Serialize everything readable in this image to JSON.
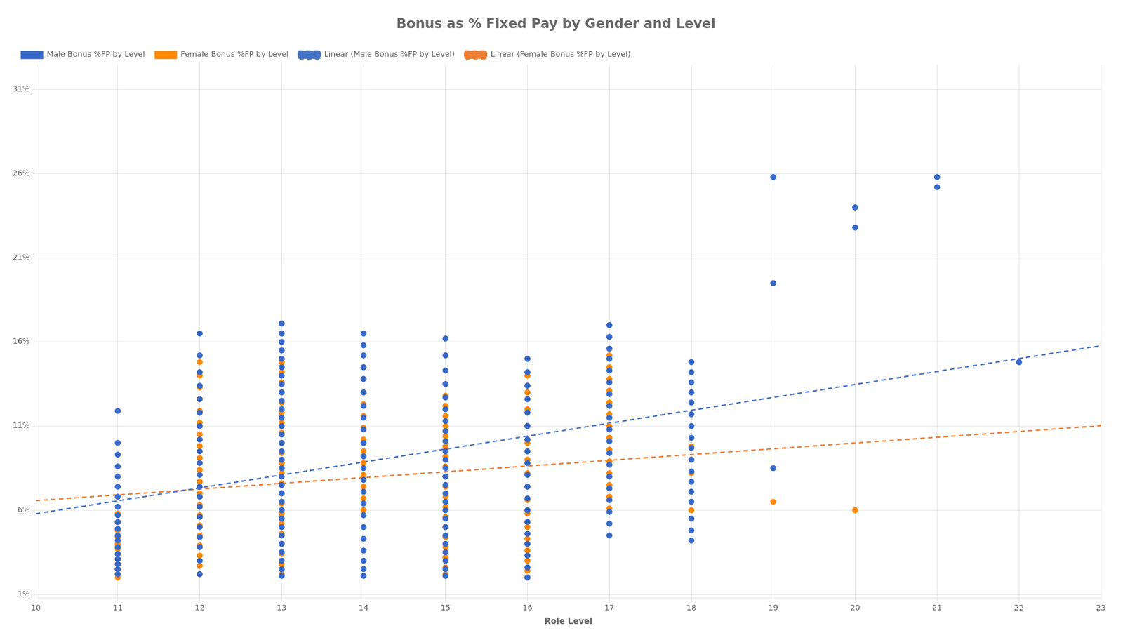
{
  "chart_data": {
    "type": "scatter",
    "title": "Bonus as % Fixed Pay by Gender and Level",
    "xlabel": "Role Level",
    "xlim": [
      10,
      23
    ],
    "ylim": [
      0.008,
      0.325
    ],
    "xticks": [
      10,
      11,
      12,
      13,
      14,
      15,
      16,
      17,
      18,
      19,
      20,
      21,
      22,
      23
    ],
    "yticks": [
      {
        "value": 0.01,
        "label": "1%"
      },
      {
        "value": 0.06,
        "label": "6%"
      },
      {
        "value": 0.11,
        "label": "11%"
      },
      {
        "value": 0.16,
        "label": "16%"
      },
      {
        "value": 0.21,
        "label": "21%"
      },
      {
        "value": 0.26,
        "label": "26%"
      },
      {
        "value": 0.31,
        "label": "31%"
      }
    ],
    "grid": true,
    "legend": "upper left",
    "series": [
      {
        "name": "Male Bonus %FP by Level",
        "type": "scatter",
        "marker": "circle",
        "color": "#3568c8",
        "x": [
          11,
          11,
          11,
          11,
          11,
          11,
          11,
          11,
          11,
          11,
          11,
          11,
          11,
          11,
          11,
          11,
          11,
          11,
          11,
          12,
          12,
          12,
          12,
          12,
          12,
          12,
          12,
          12,
          12,
          12,
          12,
          12,
          12,
          12,
          12,
          12,
          12,
          12,
          12,
          13,
          13,
          13,
          13,
          13,
          13,
          13,
          13,
          13,
          13,
          13,
          13,
          13,
          13,
          13,
          13,
          13,
          13,
          13,
          13,
          13,
          13,
          13,
          13,
          13,
          13,
          13,
          13,
          13,
          13,
          13,
          14,
          14,
          14,
          14,
          14,
          14,
          14,
          14,
          14,
          14,
          14,
          14,
          14,
          14,
          14,
          14,
          14,
          14,
          14,
          14,
          14,
          14,
          15,
          15,
          15,
          15,
          15,
          15,
          15,
          15,
          15,
          15,
          15,
          15,
          15,
          15,
          15,
          15,
          15,
          15,
          15,
          15,
          15,
          15,
          15,
          15,
          15,
          16,
          16,
          16,
          16,
          16,
          16,
          16,
          16,
          16,
          16,
          16,
          16,
          16,
          16,
          16,
          16,
          16,
          16,
          16,
          17,
          17,
          17,
          17,
          17,
          17,
          17,
          17,
          17,
          17,
          17,
          17,
          17,
          17,
          17,
          17,
          17,
          17,
          17,
          18,
          18,
          18,
          18,
          18,
          18,
          18,
          18,
          18,
          18,
          18,
          18,
          18,
          18,
          18,
          18,
          18,
          19,
          19,
          19,
          20,
          20,
          21,
          21,
          22
        ],
        "values": [
          0.119,
          0.1,
          0.093,
          0.086,
          0.08,
          0.074,
          0.068,
          0.062,
          0.057,
          0.053,
          0.049,
          0.045,
          0.042,
          0.038,
          0.034,
          0.031,
          0.028,
          0.025,
          0.022,
          0.165,
          0.152,
          0.142,
          0.134,
          0.126,
          0.118,
          0.11,
          0.102,
          0.095,
          0.088,
          0.081,
          0.074,
          0.068,
          0.062,
          0.056,
          0.05,
          0.044,
          0.038,
          0.03,
          0.022,
          0.171,
          0.165,
          0.16,
          0.155,
          0.15,
          0.145,
          0.14,
          0.135,
          0.13,
          0.125,
          0.12,
          0.115,
          0.11,
          0.105,
          0.1,
          0.095,
          0.09,
          0.085,
          0.08,
          0.075,
          0.07,
          0.065,
          0.06,
          0.055,
          0.05,
          0.045,
          0.04,
          0.035,
          0.03,
          0.025,
          0.021,
          0.165,
          0.158,
          0.152,
          0.145,
          0.138,
          0.13,
          0.122,
          0.115,
          0.108,
          0.1,
          0.092,
          0.085,
          0.078,
          0.071,
          0.064,
          0.057,
          0.05,
          0.043,
          0.036,
          0.03,
          0.025,
          0.021,
          0.162,
          0.152,
          0.143,
          0.135,
          0.127,
          0.12,
          0.113,
          0.107,
          0.101,
          0.095,
          0.09,
          0.085,
          0.08,
          0.075,
          0.07,
          0.065,
          0.06,
          0.055,
          0.05,
          0.045,
          0.04,
          0.035,
          0.03,
          0.025,
          0.021,
          0.15,
          0.142,
          0.134,
          0.126,
          0.118,
          0.11,
          0.102,
          0.095,
          0.088,
          0.081,
          0.074,
          0.067,
          0.06,
          0.053,
          0.046,
          0.04,
          0.033,
          0.026,
          0.02,
          0.17,
          0.163,
          0.156,
          0.15,
          0.143,
          0.136,
          0.129,
          0.122,
          0.115,
          0.108,
          0.101,
          0.094,
          0.087,
          0.08,
          0.073,
          0.066,
          0.059,
          0.052,
          0.045,
          0.148,
          0.142,
          0.136,
          0.13,
          0.124,
          0.117,
          0.11,
          0.103,
          0.097,
          0.09,
          0.083,
          0.077,
          0.071,
          0.065,
          0.055,
          0.048,
          0.042,
          0.258,
          0.195,
          0.085,
          0.24,
          0.228,
          0.258,
          0.252,
          0.148
        ]
      },
      {
        "name": "Female Bonus %FP by Level",
        "type": "scatter",
        "marker": "circle",
        "color": "#ff8800",
        "x": [
          11,
          11,
          11,
          11,
          11,
          11,
          11,
          11,
          11,
          11,
          11,
          11,
          12,
          12,
          12,
          12,
          12,
          12,
          12,
          12,
          12,
          12,
          12,
          12,
          12,
          12,
          12,
          12,
          12,
          12,
          12,
          12,
          13,
          13,
          13,
          13,
          13,
          13,
          13,
          13,
          13,
          13,
          13,
          13,
          13,
          13,
          13,
          13,
          13,
          13,
          13,
          13,
          13,
          13,
          14,
          14,
          14,
          14,
          14,
          14,
          14,
          14,
          14,
          14,
          14,
          14,
          14,
          15,
          15,
          15,
          15,
          15,
          15,
          15,
          15,
          15,
          15,
          15,
          15,
          15,
          15,
          15,
          15,
          15,
          15,
          15,
          16,
          16,
          16,
          16,
          16,
          16,
          16,
          16,
          16,
          16,
          16,
          16,
          16,
          16,
          16,
          16,
          17,
          17,
          17,
          17,
          17,
          17,
          17,
          17,
          17,
          17,
          17,
          17,
          17,
          17,
          18,
          18,
          18,
          18,
          18,
          19,
          20
        ],
        "values": [
          0.058,
          0.053,
          0.048,
          0.044,
          0.04,
          0.037,
          0.034,
          0.031,
          0.028,
          0.025,
          0.022,
          0.02,
          0.148,
          0.14,
          0.133,
          0.126,
          0.119,
          0.112,
          0.105,
          0.098,
          0.091,
          0.084,
          0.077,
          0.07,
          0.063,
          0.057,
          0.051,
          0.045,
          0.039,
          0.033,
          0.027,
          0.022,
          0.148,
          0.142,
          0.136,
          0.13,
          0.124,
          0.118,
          0.112,
          0.106,
          0.1,
          0.094,
          0.088,
          0.082,
          0.076,
          0.07,
          0.064,
          0.058,
          0.052,
          0.046,
          0.04,
          0.034,
          0.028,
          0.022,
          0.145,
          0.138,
          0.13,
          0.123,
          0.116,
          0.109,
          0.102,
          0.095,
          0.088,
          0.081,
          0.074,
          0.067,
          0.06,
          0.128,
          0.122,
          0.116,
          0.11,
          0.104,
          0.098,
          0.092,
          0.086,
          0.08,
          0.074,
          0.068,
          0.062,
          0.056,
          0.05,
          0.044,
          0.038,
          0.032,
          0.026,
          0.022,
          0.14,
          0.13,
          0.12,
          0.11,
          0.1,
          0.09,
          0.082,
          0.074,
          0.066,
          0.058,
          0.05,
          0.043,
          0.036,
          0.03,
          0.024,
          0.02,
          0.152,
          0.145,
          0.138,
          0.131,
          0.124,
          0.117,
          0.11,
          0.103,
          0.096,
          0.089,
          0.082,
          0.075,
          0.068,
          0.061,
          0.098,
          0.09,
          0.082,
          0.06,
          0.055,
          0.065,
          0.06
        ]
      },
      {
        "name": "Linear (Male Bonus %FP by Level)",
        "type": "line",
        "line_style": "dashed",
        "color": "#4472c4",
        "x": [
          10,
          23
        ],
        "values": [
          0.0579,
          0.1578
        ]
      },
      {
        "name": "Linear (Female Bonus %FP by Level)",
        "type": "line",
        "line_style": "dashed",
        "color": "#ed7d31",
        "x": [
          10,
          23
        ],
        "values": [
          0.0657,
          0.1102
        ]
      }
    ]
  }
}
